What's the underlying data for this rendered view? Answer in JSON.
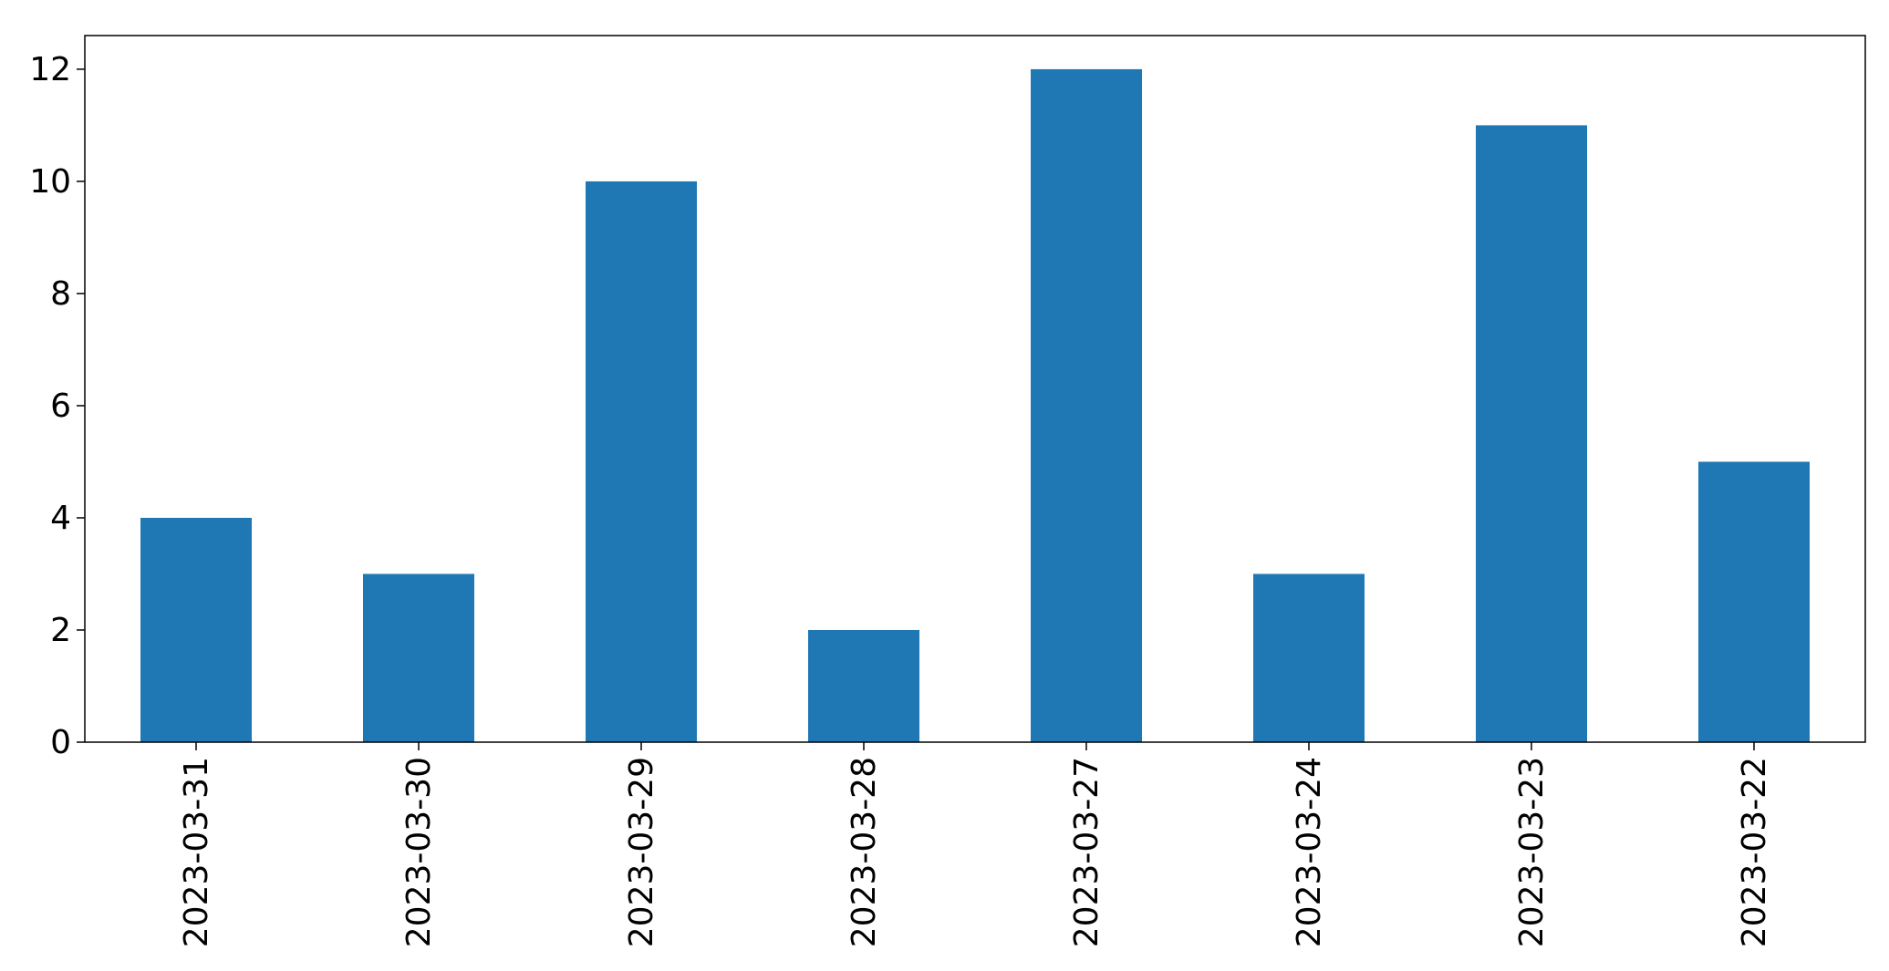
{
  "chart_data": {
    "type": "bar",
    "title": "",
    "xlabel": "",
    "ylabel": "",
    "categories": [
      "2023-03-31",
      "2023-03-30",
      "2023-03-29",
      "2023-03-28",
      "2023-03-27",
      "2023-03-24",
      "2023-03-23",
      "2023-03-22"
    ],
    "values": [
      4,
      3,
      10,
      2,
      12,
      3,
      11,
      5
    ],
    "ylim": [
      0,
      12.6
    ],
    "yticks": [
      0,
      2,
      4,
      6,
      8,
      10,
      12
    ],
    "bar_color": "#1f77b4",
    "grid": false,
    "legend": "none"
  }
}
